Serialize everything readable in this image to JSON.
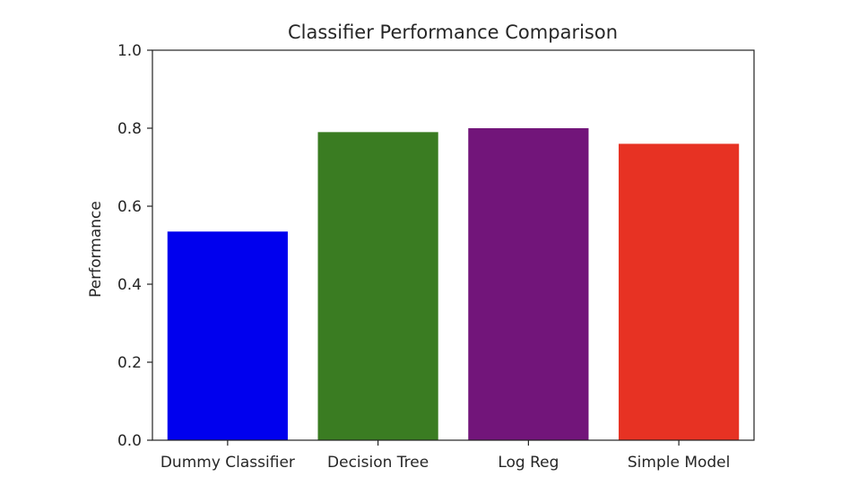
{
  "chart_data": {
    "type": "bar",
    "title": "Classifier Performance Comparison",
    "xlabel": "",
    "ylabel": "Performance",
    "ylim": [
      0,
      1.0
    ],
    "yticks": [
      "0.0",
      "0.2",
      "0.4",
      "0.6",
      "0.8",
      "1.0"
    ],
    "grid": false,
    "categories": [
      "Dummy Classifier",
      "Decision Tree",
      "Log Reg",
      "Simple Model"
    ],
    "values": [
      0.535,
      0.79,
      0.8,
      0.76
    ],
    "colors": [
      "#0000ee",
      "#3a7c22",
      "#72157a",
      "#e73223"
    ]
  }
}
